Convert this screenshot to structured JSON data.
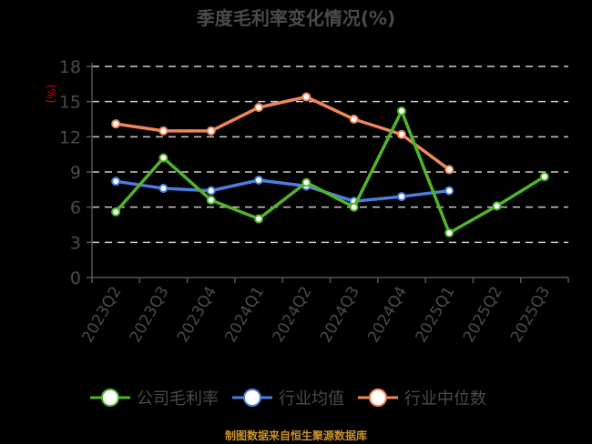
{
  "title": "季度毛利率变化情况(%)",
  "footer": "制图数据来自恒生聚源数据库",
  "chart_data": {
    "type": "line",
    "title": "季度毛利率变化情况(%)",
    "ylabel": "(%)",
    "xlabel": "",
    "ylim": [
      0,
      18
    ],
    "yticks": [
      0,
      3,
      6,
      9,
      12,
      15,
      18
    ],
    "grid": true,
    "legend_position": "bottom",
    "categories": [
      "2023Q2",
      "2023Q3",
      "2023Q4",
      "2024Q1",
      "2024Q2",
      "2024Q3",
      "2024Q4",
      "2025Q1",
      "2025Q2",
      "2025Q3"
    ],
    "series": [
      {
        "name": "公司毛利率",
        "color": "#52b32a",
        "values": [
          5.6,
          10.2,
          6.6,
          5.0,
          8.1,
          6.0,
          14.2,
          3.8,
          6.1,
          8.6
        ]
      },
      {
        "name": "行业均值",
        "color": "#4a7fe0",
        "values": [
          8.2,
          7.6,
          7.4,
          8.3,
          7.8,
          6.5,
          6.9,
          7.4,
          null,
          null
        ]
      },
      {
        "name": "行业中位数",
        "color": "#f0875a",
        "values": [
          13.1,
          12.5,
          12.5,
          14.5,
          15.4,
          13.5,
          12.2,
          9.2,
          null,
          null
        ]
      }
    ]
  },
  "colors": {
    "background": "#000000",
    "text": "#4a4a4a",
    "grid": "#cccccc",
    "ylabel": "#e00000",
    "footer": "#c8922a"
  }
}
